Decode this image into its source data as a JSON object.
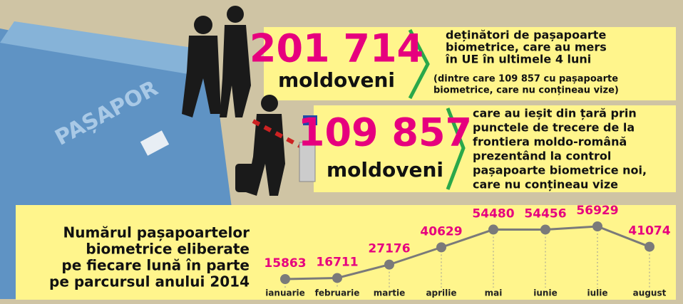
{
  "panels": [
    {
      "number": "201 714",
      "unit": "moldoveni",
      "lines": [
        "deținători de pașapoarte",
        "biometrice, care au mers",
        "în UE în ultimele 4 luni"
      ],
      "note": [
        "(dintre care 109 857 cu pașapoarte",
        "biometrice, care nu conțineau vize)"
      ]
    },
    {
      "number": "109 857",
      "unit": "moldoveni",
      "lines": [
        "care au ieșit din țară prin",
        "punctele de trecere de la",
        "frontiera moldo-română",
        "prezentând la control",
        "pașapoarte biometrice noi,",
        "care nu conțineau vize"
      ]
    }
  ],
  "passport_text": "PAȘAPOR",
  "chart_data": {
    "type": "line",
    "title": [
      "Numărul pașapoartelor",
      "biometrice eliberate",
      "pe fiecare lună în parte",
      "pe parcursul anului 2014"
    ],
    "categories": [
      "ianuarie",
      "februarie",
      "martie",
      "aprilie",
      "mai",
      "iunie",
      "iulie",
      "august"
    ],
    "values": [
      15863,
      16711,
      27176,
      40629,
      54480,
      54456,
      56929,
      41074
    ],
    "color": "#7a7a7a",
    "label_color": "#e6007e"
  }
}
